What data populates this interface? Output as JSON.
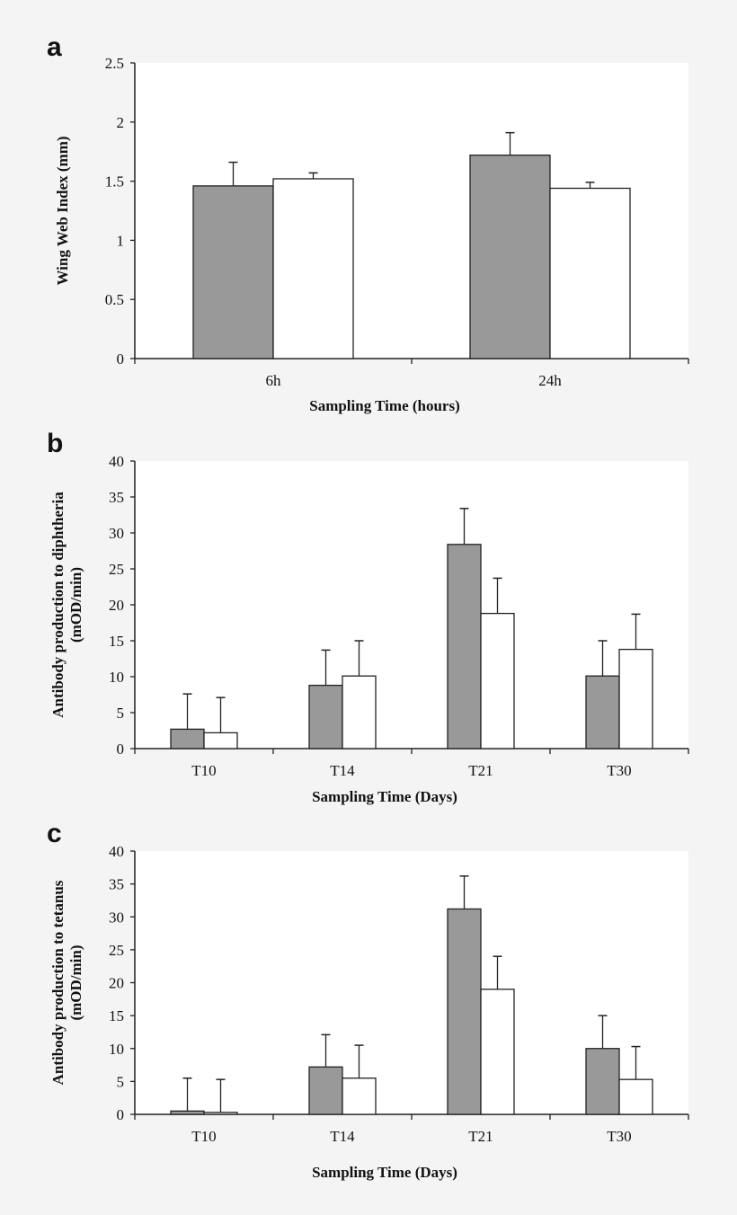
{
  "chart_data": [
    {
      "panel": "a",
      "type": "bar",
      "xlabel": "Sampling Time (hours)",
      "ylabel": [
        "Wing Web Index (mm)"
      ],
      "ylim": [
        0,
        2.5
      ],
      "yticks": [
        "0",
        "0.5",
        "1",
        "1.5",
        "2",
        "2.5"
      ],
      "categories": [
        "6h",
        "24h"
      ],
      "series": [
        {
          "color": "#999999",
          "values": [
            1.46,
            1.72
          ],
          "errors": [
            0.2,
            0.19
          ]
        },
        {
          "color": "#ffffff",
          "values": [
            1.52,
            1.44
          ],
          "errors": [
            0.05,
            0.05
          ]
        }
      ],
      "grid": false
    },
    {
      "panel": "b",
      "type": "bar",
      "xlabel": "Sampling Time (Days)",
      "ylabel": [
        "Antibody production to diphtheria",
        "(mOD/min)"
      ],
      "ylim": [
        0,
        40
      ],
      "yticks": [
        "0",
        "5",
        "10",
        "15",
        "20",
        "25",
        "30",
        "35",
        "40"
      ],
      "categories": [
        "T10",
        "T14",
        "T21",
        "T30"
      ],
      "series": [
        {
          "color": "#999999",
          "values": [
            2.7,
            8.8,
            28.4,
            10.1
          ],
          "errors": [
            4.9,
            4.9,
            5.0,
            4.9
          ]
        },
        {
          "color": "#ffffff",
          "values": [
            2.2,
            10.1,
            18.8,
            13.8
          ],
          "errors": [
            4.9,
            4.9,
            4.9,
            4.9
          ]
        }
      ],
      "grid": false
    },
    {
      "panel": "c",
      "type": "bar",
      "xlabel": "Sampling Time (Days)",
      "ylabel": [
        "Antibody production to tetanus",
        "(mOD/min)"
      ],
      "ylim": [
        0,
        40
      ],
      "yticks": [
        "0",
        "5",
        "10",
        "15",
        "20",
        "25",
        "30",
        "35",
        "40"
      ],
      "categories": [
        "T10",
        "T14",
        "T21",
        "T30"
      ],
      "series": [
        {
          "color": "#999999",
          "values": [
            0.5,
            7.2,
            31.2,
            10.0
          ],
          "errors": [
            5.0,
            4.9,
            5.0,
            5.0
          ]
        },
        {
          "color": "#ffffff",
          "values": [
            0.3,
            5.5,
            19.0,
            5.3
          ],
          "errors": [
            5.0,
            5.0,
            5.0,
            5.0
          ]
        }
      ],
      "grid": false
    }
  ]
}
